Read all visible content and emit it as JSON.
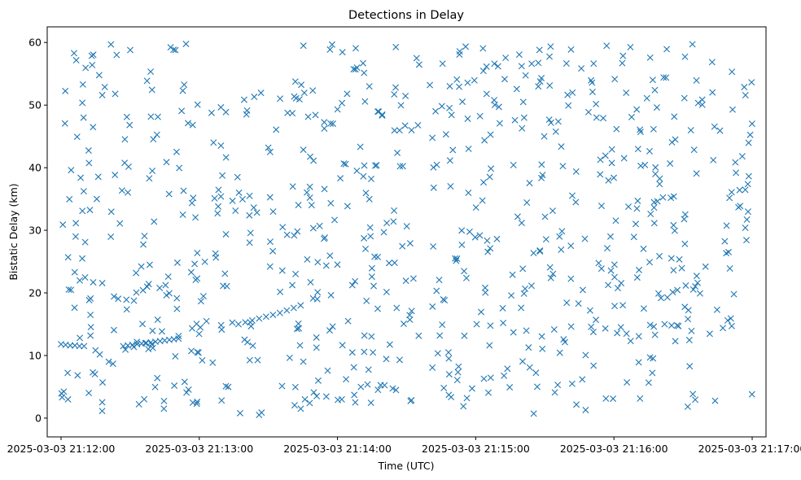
{
  "chart_data": {
    "type": "scatter",
    "title": "Detections in Delay",
    "xlabel": "Time (UTC)",
    "ylabel": "Bistatic Delay (km)",
    "x_unit": "seconds after 21:12:00",
    "xlim": [
      -6,
      306
    ],
    "ylim": [
      -3,
      62.5
    ],
    "xticks": [
      {
        "value": 0,
        "label": "2025-03-03 21:12:00"
      },
      {
        "value": 60,
        "label": "2025-03-03 21:13:00"
      },
      {
        "value": 120,
        "label": "2025-03-03 21:14:00"
      },
      {
        "value": 180,
        "label": "2025-03-03 21:15:00"
      },
      {
        "value": 240,
        "label": "2025-03-03 21:16:00"
      },
      {
        "value": 300,
        "label": "2025-03-03 21:17:00"
      }
    ],
    "yticks": [
      0,
      10,
      20,
      30,
      40,
      50,
      60
    ],
    "marker": "x",
    "color": "#1f77b4",
    "grid": false,
    "legend": "none",
    "track_points": [
      [
        0,
        11.8
      ],
      [
        2,
        11.7
      ],
      [
        4,
        11.6
      ],
      [
        6,
        11.6
      ],
      [
        8,
        11.5
      ],
      [
        10,
        11.5
      ],
      [
        27,
        11.5
      ],
      [
        29,
        11.6
      ],
      [
        31,
        11.7
      ],
      [
        33,
        11.8
      ],
      [
        35,
        11.9
      ],
      [
        37,
        12.0
      ],
      [
        39,
        12.1
      ],
      [
        41,
        12.2
      ],
      [
        43,
        12.3
      ],
      [
        45,
        12.4
      ],
      [
        47,
        12.5
      ],
      [
        49,
        12.6
      ],
      [
        51,
        12.7
      ],
      [
        77,
        15.0
      ],
      [
        80,
        15.3
      ],
      [
        83,
        15.6
      ],
      [
        86,
        15.9
      ],
      [
        89,
        16.2
      ],
      [
        92,
        16.5
      ],
      [
        95,
        16.8
      ],
      [
        98,
        17.2
      ],
      [
        101,
        17.6
      ],
      [
        104,
        18.0
      ],
      [
        262,
        15.0
      ],
      [
        265,
        14.8
      ],
      [
        268,
        14.7
      ]
    ],
    "clutter": {
      "count": 780,
      "x_range": [
        0,
        300
      ],
      "y_range": [
        0.5,
        59.8
      ],
      "seed": 20250303
    }
  }
}
